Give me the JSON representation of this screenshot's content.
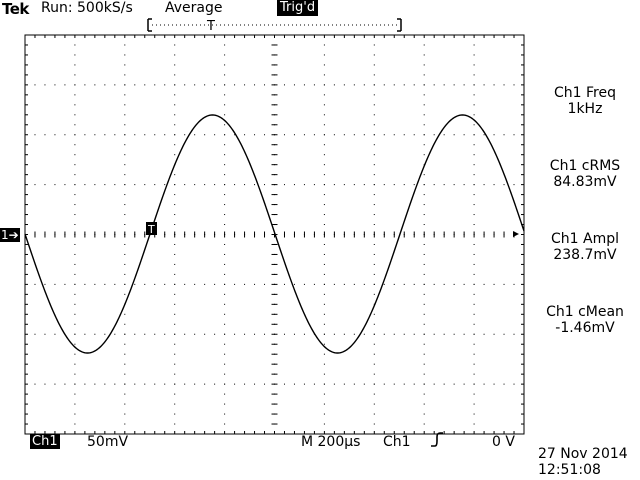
{
  "status": {
    "brand": "Tek",
    "run": "Run: 500kS/s",
    "acq_mode": "Average",
    "trigger_state": "Trig'd"
  },
  "trigger_position_label": "T",
  "ch1_marker": "1➔",
  "trigger_point_label": "T",
  "measurements": [
    {
      "name": "Ch1 Freq",
      "value": "1kHz"
    },
    {
      "name": "Ch1 cRMS",
      "value": "84.83mV"
    },
    {
      "name": "Ch1 Ampl",
      "value": "238.7mV"
    },
    {
      "name": "Ch1 cMean",
      "value": "-1.46mV"
    }
  ],
  "readout": {
    "channel": "Ch1",
    "volts_per_div": "50mV",
    "timebase": "M 200µs",
    "trigger_source": "Ch1",
    "trigger_level": "0 V"
  },
  "timestamp": {
    "date": "27 Nov 2014",
    "time": "12:51:08"
  },
  "colors": {
    "trace": "#000000",
    "graticule": "#000000",
    "background": "#ffffff"
  }
}
